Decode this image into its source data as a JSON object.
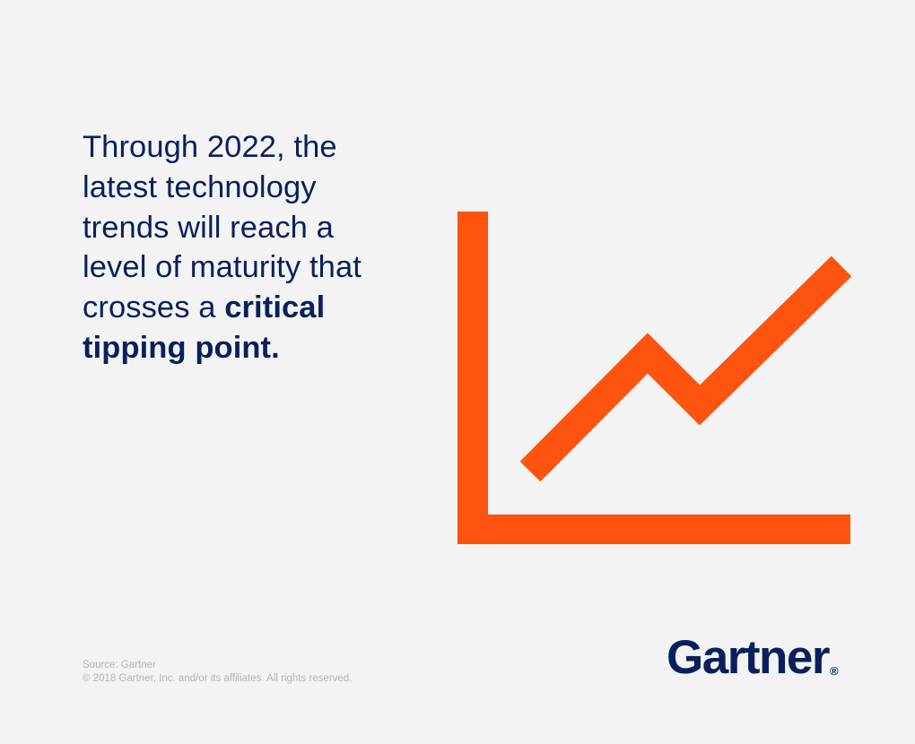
{
  "headline": {
    "line1": "Through 2022, the",
    "line2": "latest technology",
    "line3": "trends will reach a",
    "line4": "level of maturity that",
    "line5_regular": "crosses a ",
    "line5_bold": "critical",
    "line6_bold": "tipping point."
  },
  "graphic": {
    "icon": "line-chart-icon",
    "color": "#ff5310"
  },
  "footer": {
    "source": "Source: Gartner",
    "copyright": "© 2018 Gartner, Inc. and/or its affiliates. All rights reserved."
  },
  "logo": {
    "text": "Gartner",
    "registered": "®",
    "color": "#0a1f5c"
  }
}
